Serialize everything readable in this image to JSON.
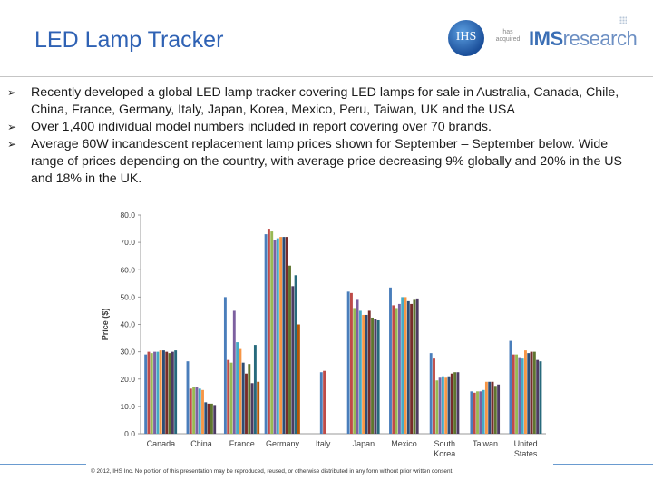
{
  "slide": {
    "title": "LED Lamp Tracker",
    "bullets": [
      "Recently developed a global LED lamp tracker covering LED lamps for sale in Australia, Canada, Chile, China, France, Germany, Italy, Japan, Korea, Mexico, Peru, Taiwan, UK and the USA",
      "Over 1,400 individual model numbers included in report covering over 70 brands.",
      "Average 60W incandescent replacement lamp prices shown for September – September below. Wide range of prices depending on the country, with average price decreasing 9% globally and  20% in the US and 18% in the UK."
    ],
    "footer": "© 2012, IHS Inc. No portion of this presentation may be reproduced, reused, or otherwise distributed in any form without prior written consent."
  },
  "logo": {
    "ihs": "IHS",
    "has_acquired": "has acquired",
    "ims_bold": "IMS",
    "ims_light": "research"
  },
  "chart_data": {
    "type": "bar",
    "ylabel": "Price ($)",
    "xlabel": "",
    "ylim": [
      0,
      80
    ],
    "yticks": [
      "0.0",
      "10.0",
      "20.0",
      "30.0",
      "40.0",
      "50.0",
      "60.0",
      "70.0",
      "80.0"
    ],
    "grid": false,
    "legend": "none",
    "categories": [
      "Canada",
      "China",
      "France",
      "Germany",
      "Italy",
      "Japan",
      "Mexico",
      "South Korea",
      "Taiwan",
      "United States"
    ],
    "colors": [
      "#4a7ebb",
      "#be4b48",
      "#98b954",
      "#7d60a0",
      "#46aac5",
      "#f79646",
      "#2c4d75",
      "#772c2a",
      "#5f7530",
      "#4d3b62",
      "#276a7c",
      "#b65708",
      "#729aca",
      "#cd7371",
      "#afc97a",
      "#9983b5",
      "#6fbdd1",
      "#f9ab6b",
      "#a6a6a6",
      "#c9c9c9"
    ],
    "groups": [
      [
        29,
        30,
        29.5,
        30,
        30,
        30.5,
        30.5,
        30,
        29.5,
        30,
        30.5
      ],
      [
        26.5,
        16.5,
        17,
        17,
        16.5,
        16,
        11.5,
        11,
        11,
        10.5
      ],
      [
        50,
        27,
        26,
        45,
        33.5,
        31,
        26,
        22,
        25.5,
        18.5,
        32.5,
        19
      ],
      [
        73,
        75,
        74,
        71,
        71.5,
        72,
        72,
        72,
        61.5,
        54,
        58,
        40
      ],
      [
        22.5,
        23
      ],
      [
        52,
        51.5,
        46,
        49,
        45,
        43.5,
        43.5,
        45,
        42.5,
        42,
        41.5
      ],
      [
        53.5,
        47,
        46,
        47.5,
        50,
        50,
        48.5,
        47.5,
        49,
        49.5
      ],
      [
        29.5,
        27.5,
        19.5,
        20.5,
        21,
        20.5,
        21,
        22,
        22.5,
        22.5
      ],
      [
        15.5,
        15,
        15.5,
        15.5,
        16,
        19,
        19,
        19,
        17.5,
        18
      ],
      [
        34,
        29,
        29,
        28,
        27.5,
        30.5,
        29.5,
        30,
        30,
        27,
        26.5
      ]
    ]
  }
}
